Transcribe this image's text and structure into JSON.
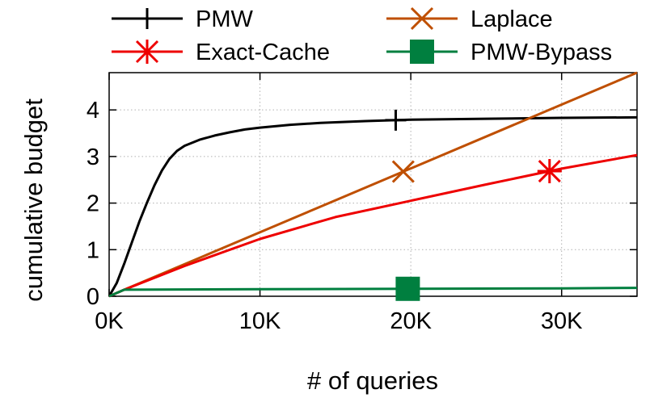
{
  "chart_data": {
    "type": "line",
    "title": "",
    "xlabel": "# of queries",
    "ylabel": "cumulative budget",
    "xlim": [
      0,
      35000
    ],
    "ylim": [
      0,
      4.8
    ],
    "grid": true,
    "legend_position": "top",
    "x_ticks": [
      {
        "value": 0,
        "label": "0K"
      },
      {
        "value": 10000,
        "label": "10K"
      },
      {
        "value": 20000,
        "label": "20K"
      },
      {
        "value": 30000,
        "label": "30K"
      }
    ],
    "y_ticks": [
      {
        "value": 0,
        "label": "0"
      },
      {
        "value": 1,
        "label": "1"
      },
      {
        "value": 2,
        "label": "2"
      },
      {
        "value": 3,
        "label": "3"
      },
      {
        "value": 4,
        "label": "4"
      }
    ],
    "series": [
      {
        "name": "PMW",
        "color": "#000000",
        "marker": "plus",
        "marker_x": 19000,
        "points": [
          [
            0,
            0
          ],
          [
            500,
            0.28
          ],
          [
            1000,
            0.7
          ],
          [
            1500,
            1.15
          ],
          [
            2000,
            1.6
          ],
          [
            2500,
            2.0
          ],
          [
            3000,
            2.38
          ],
          [
            3500,
            2.7
          ],
          [
            4000,
            2.95
          ],
          [
            4500,
            3.12
          ],
          [
            5000,
            3.23
          ],
          [
            6000,
            3.36
          ],
          [
            7000,
            3.45
          ],
          [
            8000,
            3.52
          ],
          [
            9000,
            3.58
          ],
          [
            10000,
            3.62
          ],
          [
            12000,
            3.68
          ],
          [
            14000,
            3.72
          ],
          [
            17000,
            3.76
          ],
          [
            20000,
            3.79
          ],
          [
            25000,
            3.81
          ],
          [
            30000,
            3.83
          ],
          [
            35000,
            3.84
          ]
        ]
      },
      {
        "name": "Laplace",
        "color": "#bf4f00",
        "marker": "x",
        "marker_x": 19500,
        "points": [
          [
            0,
            0
          ],
          [
            1000,
            0.14
          ],
          [
            35000,
            4.8
          ]
        ]
      },
      {
        "name": "Exact-Cache",
        "color": "#ee0000",
        "marker": "asterisk",
        "marker_x": 29200,
        "points": [
          [
            0,
            0
          ],
          [
            1000,
            0.14
          ],
          [
            5000,
            0.65
          ],
          [
            10000,
            1.23
          ],
          [
            15000,
            1.7
          ],
          [
            20000,
            2.05
          ],
          [
            25000,
            2.4
          ],
          [
            30000,
            2.74
          ],
          [
            35000,
            3.03
          ]
        ]
      },
      {
        "name": "PMW-Bypass",
        "color": "#007f3f",
        "marker": "square",
        "marker_x": 19800,
        "points": [
          [
            0,
            0
          ],
          [
            1000,
            0.14
          ],
          [
            10000,
            0.15
          ],
          [
            20000,
            0.16
          ],
          [
            30000,
            0.17
          ],
          [
            35000,
            0.18
          ]
        ]
      }
    ]
  }
}
